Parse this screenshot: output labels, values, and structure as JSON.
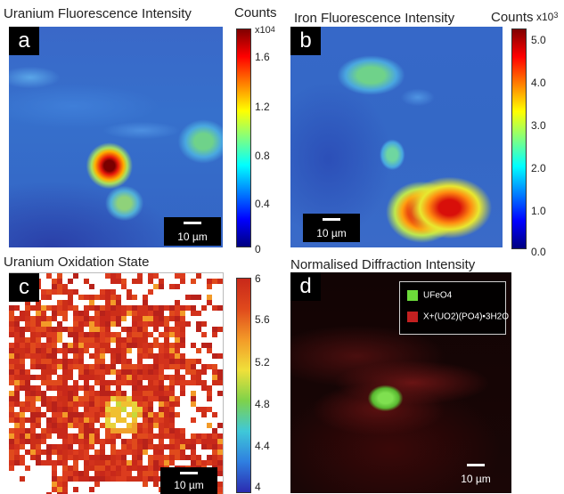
{
  "panels": {
    "a": {
      "letter": "a",
      "title": "Uranium Fluorescence Intensity",
      "colorbar_label": "Counts",
      "exponent_base": "x10",
      "exponent_power": "4",
      "ticks": [
        "1.6",
        "1.2",
        "0.8",
        "0.4",
        "0"
      ],
      "scalebar": "10 µm"
    },
    "b": {
      "letter": "b",
      "title": "Iron Fluorescence Intensity",
      "colorbar_label": "Counts",
      "exponent_base": "x10",
      "exponent_power": "3",
      "ticks": [
        "5.0",
        "4.0",
        "3.0",
        "2.0",
        "1.0",
        "0.0"
      ],
      "scalebar": "10 µm"
    },
    "c": {
      "letter": "c",
      "title": "Uranium Oxidation State",
      "ticks": [
        "6",
        "5.6",
        "5.2",
        "4.8",
        "4.4",
        "4"
      ],
      "scalebar": "10 µm"
    },
    "d": {
      "letter": "d",
      "title": "Normalised Diffraction Intensity",
      "legend": [
        {
          "label": "UFeO4",
          "color": "#6ddc3a"
        },
        {
          "label": "X+(UO2)(PO4)•3H2O",
          "color": "#c42020"
        }
      ],
      "scalebar": "10 µm"
    }
  },
  "colors": {
    "jet": [
      "#00007f",
      "#0000ff",
      "#0080ff",
      "#00ffff",
      "#80ff80",
      "#ffff00",
      "#ff8000",
      "#ff0000",
      "#7f0000"
    ],
    "oxidation": [
      "#2b2bb0",
      "#2f7fe0",
      "#3fc8d8",
      "#7ed24a",
      "#f0e03a",
      "#f39a28",
      "#e04a1c",
      "#c8281a"
    ]
  }
}
